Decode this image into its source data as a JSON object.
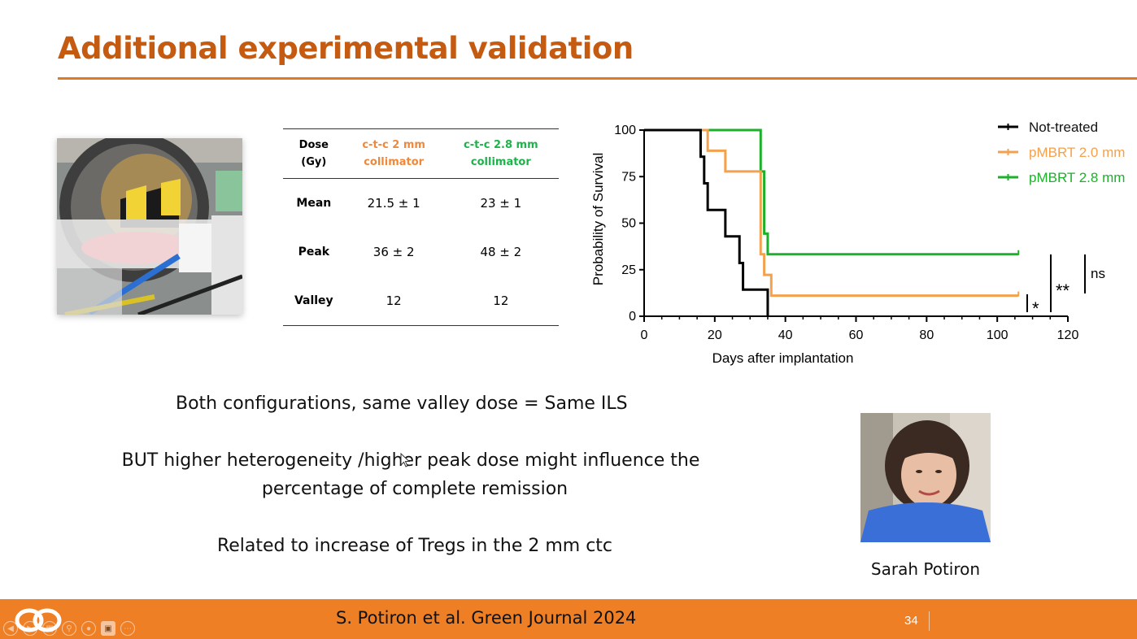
{
  "slide": {
    "title": "Additional experimental validation",
    "page_number": "34",
    "citation": "S. Potiron et al. Green Journal 2024",
    "accent_color": "#c55a11",
    "footer_color": "#ef7f25"
  },
  "table": {
    "headers": {
      "dose_line1": "Dose",
      "dose_line2": "(Gy)",
      "col2_line1": "c-t-c 2 mm",
      "col2_line2": "collimator",
      "col3_line1": "c-t-c 2.8 mm",
      "col3_line2": "collimator"
    },
    "rows": [
      {
        "label": "Mean",
        "v2": "21.5 ± 1",
        "v3": "23 ± 1"
      },
      {
        "label": "Peak",
        "v2": "36 ± 2",
        "v3": "48 ± 2"
      },
      {
        "label": "Valley",
        "v2": "12",
        "v3": "12"
      }
    ]
  },
  "chart_data": {
    "type": "line",
    "step": true,
    "xlabel": "Days after implantation",
    "ylabel": "Probability of Survival",
    "xlim": [
      0,
      120
    ],
    "ylim": [
      0,
      100
    ],
    "xticks": [
      "0",
      "20",
      "40",
      "60",
      "80",
      "100",
      "120"
    ],
    "yticks": [
      "0",
      "25",
      "50",
      "75",
      "100"
    ],
    "legend_position": "top-right",
    "grid": false,
    "series": [
      {
        "name": "Not-treated",
        "color": "#000000",
        "x": [
          0,
          16,
          17,
          18,
          23,
          27,
          28,
          35,
          35
        ],
        "y": [
          100,
          85.7,
          71.4,
          57.1,
          42.9,
          28.6,
          14.3,
          0,
          0
        ]
      },
      {
        "name": "pMBRT 2.0 mm",
        "color": "#f4a14e",
        "x": [
          0,
          18,
          23,
          33,
          34,
          36,
          106
        ],
        "y": [
          100,
          88.9,
          77.8,
          33.3,
          22.2,
          11.1,
          11.1
        ]
      },
      {
        "name": "pMBRT 2.8 mm",
        "color": "#1db12b",
        "x": [
          0,
          33,
          34,
          35,
          106
        ],
        "y": [
          100,
          77.8,
          44.4,
          33.3,
          33.3
        ]
      }
    ],
    "annotations": [
      {
        "text": "*",
        "label": "significance-single"
      },
      {
        "text": "**",
        "label": "significance-double"
      },
      {
        "text": "ns",
        "label": "not-significant"
      }
    ]
  },
  "body": {
    "line1": "Both configurations, same valley dose = Same ILS",
    "line2a": "BUT higher heterogeneity /higher peak dose might influence the",
    "line2b": "percentage of complete remission",
    "line3": "Related to increase of Tregs  in the  2 mm ctc"
  },
  "person": {
    "name": "Sarah Potiron"
  },
  "icons": [
    "logo-icon",
    "cursor-icon",
    "toolbar-back-icon",
    "toolbar-forward-icon",
    "toolbar-slides-icon",
    "toolbar-zoom-icon",
    "toolbar-pointer-icon",
    "toolbar-video-icon",
    "toolbar-more-icon"
  ]
}
